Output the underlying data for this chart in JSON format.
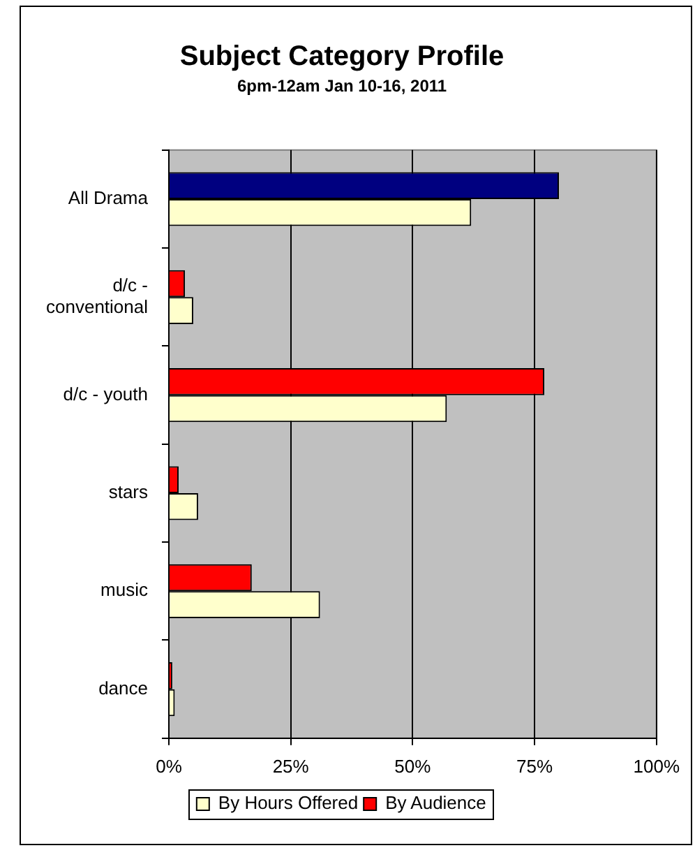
{
  "chart_data": {
    "type": "bar",
    "orientation": "horizontal",
    "title": "Subject Category Profile",
    "subtitle": "6pm-12am Jan 10-16, 2011",
    "categories": [
      "All Drama",
      "d/c - conventional",
      "d/c - youth",
      "stars",
      "music",
      "dance"
    ],
    "series": [
      {
        "name": "By Hours Offered",
        "color": "#ffffcc",
        "values": [
          62,
          5,
          57,
          6,
          31,
          1.2
        ]
      },
      {
        "name": "By Audience",
        "color": "#ff0000",
        "colors": [
          "#000080",
          "#ff0000",
          "#ff0000",
          "#ff0000",
          "#ff0000",
          "#ff0000"
        ],
        "values": [
          80,
          3.3,
          77,
          2,
          17,
          0.7
        ]
      }
    ],
    "xlim": [
      0,
      100
    ],
    "xticks": [
      {
        "value": 0,
        "label": "0%"
      },
      {
        "value": 25,
        "label": "25%"
      },
      {
        "value": 50,
        "label": "50%"
      },
      {
        "value": 75,
        "label": "75%"
      },
      {
        "value": 100,
        "label": "100%"
      }
    ],
    "grid": "x",
    "legend": "bottom"
  }
}
